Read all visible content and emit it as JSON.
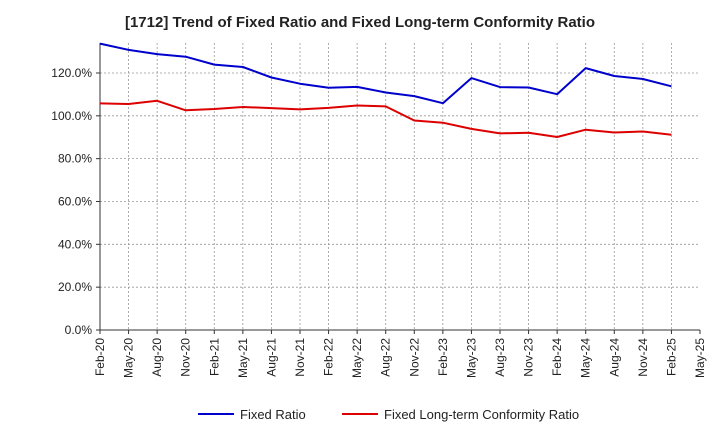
{
  "chart_data": {
    "type": "line",
    "title": "[1712]  Trend of Fixed Ratio and Fixed Long-term Conformity Ratio",
    "xlabel": "",
    "ylabel": "",
    "categories": [
      "Feb-20",
      "May-20",
      "Aug-20",
      "Nov-20",
      "Feb-21",
      "May-21",
      "Aug-21",
      "Nov-21",
      "Feb-22",
      "May-22",
      "Aug-22",
      "Nov-22",
      "Feb-23",
      "May-23",
      "Aug-23",
      "Nov-23",
      "Feb-24",
      "May-24",
      "Aug-24",
      "Nov-24",
      "Feb-25",
      "May-25"
    ],
    "y_tick_labels": [
      "0.0%",
      "20.0%",
      "40.0%",
      "60.0%",
      "80.0%",
      "100.0%",
      "120.0%"
    ],
    "y_ticks": [
      0,
      20,
      40,
      60,
      80,
      100,
      120
    ],
    "ylim": [
      0,
      134
    ],
    "grid": true,
    "legend_position": "bottom",
    "series": [
      {
        "name": "Fixed Ratio",
        "color": "#0000cc",
        "values": [
          133.7,
          130.8,
          128.8,
          127.6,
          123.9,
          122.8,
          117.9,
          115.0,
          113.1,
          113.5,
          110.9,
          109.2,
          105.9,
          117.6,
          113.4,
          113.2,
          110.1,
          122.3,
          118.6,
          117.2,
          113.8,
          null
        ]
      },
      {
        "name": "Fixed Long-term Conformity Ratio",
        "color": "#dd0000",
        "values": [
          105.8,
          105.5,
          107.0,
          102.6,
          103.2,
          104.1,
          103.6,
          103.0,
          103.7,
          104.8,
          104.4,
          97.8,
          96.8,
          93.9,
          91.8,
          92.1,
          90.1,
          93.5,
          92.2,
          92.7,
          91.2,
          null
        ]
      }
    ]
  }
}
